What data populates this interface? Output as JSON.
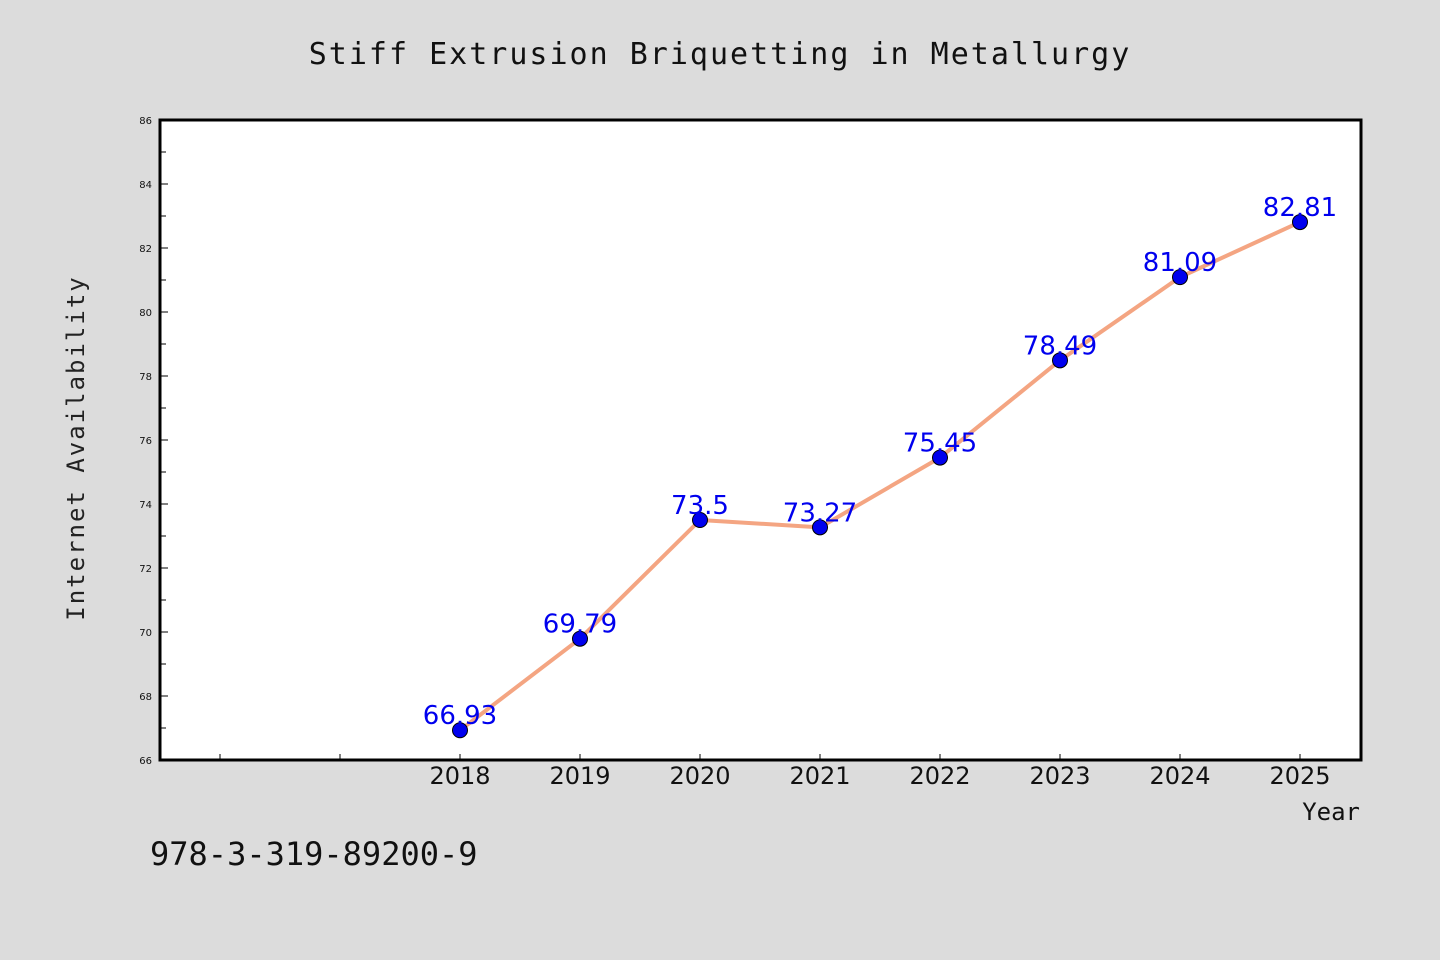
{
  "chart_data": {
    "type": "line",
    "title": "Stiff Extrusion Briquetting in Metallurgy",
    "xlabel": "Year",
    "ylabel": "Internet Availability",
    "x": [
      "2018",
      "2019",
      "2020",
      "2021",
      "2022",
      "2023",
      "2024",
      "2025"
    ],
    "series": [
      {
        "values": [
          66.93,
          69.79,
          73.5,
          73.27,
          75.45,
          78.49,
          81.09,
          82.81
        ]
      }
    ],
    "data_labels": [
      "66.93",
      "69.79",
      "73.5",
      "73.27",
      "75.45",
      "78.49",
      "81.09",
      "82.81"
    ],
    "ylim": [
      66,
      86
    ],
    "yticks": [
      "66",
      "68",
      "70",
      "72",
      "74",
      "76",
      "78",
      "80",
      "82",
      "84",
      "86"
    ],
    "grid": false,
    "line_color": "#f4a582",
    "marker_color": "#0000ee",
    "label_color": "#0000ee"
  },
  "footer": {
    "code": "978-3-319-89200-9"
  }
}
